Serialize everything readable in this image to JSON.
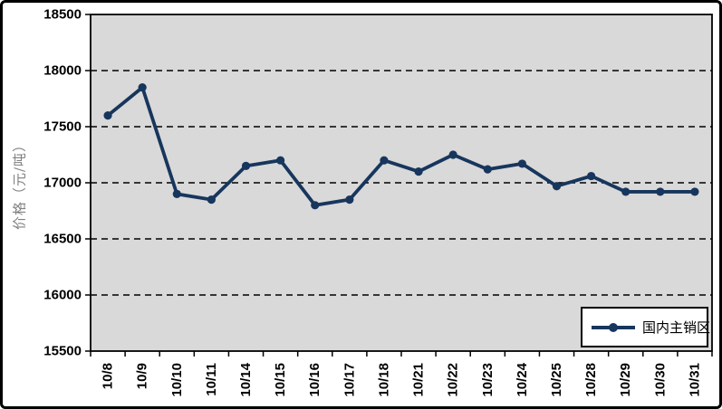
{
  "chart_data": {
    "type": "line",
    "title": "",
    "categories": [
      "10/8",
      "10/9",
      "10/10",
      "10/11",
      "10/14",
      "10/15",
      "10/16",
      "10/17",
      "10/18",
      "10/21",
      "10/22",
      "10/23",
      "10/24",
      "10/25",
      "10/28",
      "10/29",
      "10/30",
      "10/31"
    ],
    "series": [
      {
        "name": "国内主销区",
        "color": "#17365D",
        "values": [
          17600,
          17850,
          16900,
          16850,
          17150,
          17200,
          16800,
          16850,
          17200,
          17100,
          17250,
          17120,
          17170,
          16970,
          17060,
          16920,
          16920,
          16920
        ]
      }
    ],
    "xlabel": "",
    "ylabel": "价格（元/吨）",
    "ylim": [
      15500,
      18500
    ],
    "yticks": [
      15500,
      16000,
      16500,
      17000,
      17500,
      18000,
      18500
    ],
    "grid": "horizontal-dashed",
    "legend": {
      "position": "inside-bottom-right",
      "entries": [
        "国内主销区"
      ]
    },
    "colors": {
      "series": "#17365D",
      "plot_background": "#D9D9D9",
      "gridline": "#000000",
      "tick_text": "#000000",
      "axis_title_text": "#808080",
      "frame_border": "#000000",
      "legend_background": "#FFFFFF",
      "legend_border": "#000000"
    }
  }
}
